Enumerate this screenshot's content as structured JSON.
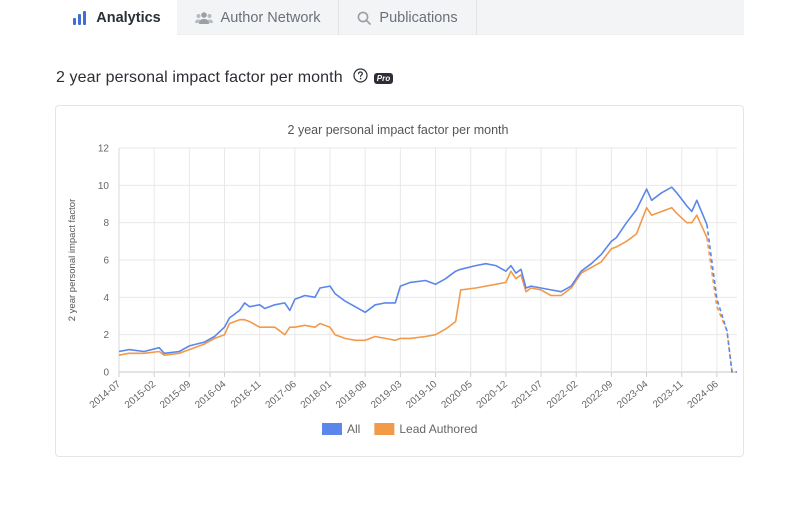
{
  "tabs": [
    {
      "label": "Analytics",
      "icon": "bar-chart-icon",
      "active": true
    },
    {
      "label": "Author Network",
      "icon": "users-icon",
      "active": false
    },
    {
      "label": "Publications",
      "icon": "search-icon",
      "active": false
    }
  ],
  "section": {
    "title": "2 year personal impact factor per month",
    "help_icon": "question-circle-icon",
    "badge": "Pro"
  },
  "chart_data": {
    "type": "line",
    "title": "2 year personal impact factor per month",
    "ylabel": "2 year personal impact factor",
    "xlabel": "",
    "ylim": [
      0,
      12
    ],
    "yticks": [
      0,
      2,
      4,
      6,
      8,
      10,
      12
    ],
    "xticks": [
      "2014-07",
      "2015-02",
      "2015-09",
      "2016-04",
      "2016-11",
      "2017-06",
      "2018-01",
      "2018-08",
      "2019-03",
      "2019-10",
      "2020-05",
      "2020-12",
      "2021-07",
      "2022-02",
      "2022-09",
      "2023-04",
      "2023-11",
      "2024-06"
    ],
    "x_start": "2014-07",
    "x_end": "2024-10",
    "grid": true,
    "legend_position": "bottom",
    "colors": {
      "All": "#5b87ea",
      "Lead Authored": "#f29a4a"
    },
    "series": [
      {
        "name": "All",
        "points": [
          [
            "2014-07",
            1.1
          ],
          [
            "2014-09",
            1.2
          ],
          [
            "2014-12",
            1.1
          ],
          [
            "2015-03",
            1.3
          ],
          [
            "2015-04",
            1.0
          ],
          [
            "2015-07",
            1.1
          ],
          [
            "2015-09",
            1.4
          ],
          [
            "2015-12",
            1.6
          ],
          [
            "2016-02",
            1.9
          ],
          [
            "2016-04",
            2.4
          ],
          [
            "2016-05",
            2.9
          ],
          [
            "2016-07",
            3.3
          ],
          [
            "2016-08",
            3.7
          ],
          [
            "2016-09",
            3.5
          ],
          [
            "2016-11",
            3.6
          ],
          [
            "2016-12",
            3.4
          ],
          [
            "2017-02",
            3.6
          ],
          [
            "2017-04",
            3.7
          ],
          [
            "2017-05",
            3.3
          ],
          [
            "2017-06",
            3.9
          ],
          [
            "2017-08",
            4.1
          ],
          [
            "2017-10",
            4.0
          ],
          [
            "2017-11",
            4.5
          ],
          [
            "2018-01",
            4.6
          ],
          [
            "2018-02",
            4.2
          ],
          [
            "2018-04",
            3.8
          ],
          [
            "2018-06",
            3.5
          ],
          [
            "2018-08",
            3.2
          ],
          [
            "2018-10",
            3.6
          ],
          [
            "2018-12",
            3.7
          ],
          [
            "2019-02",
            3.7
          ],
          [
            "2019-03",
            4.6
          ],
          [
            "2019-05",
            4.8
          ],
          [
            "2019-08",
            4.9
          ],
          [
            "2019-10",
            4.7
          ],
          [
            "2019-12",
            5.0
          ],
          [
            "2020-02",
            5.4
          ],
          [
            "2020-03",
            5.5
          ],
          [
            "2020-06",
            5.7
          ],
          [
            "2020-08",
            5.8
          ],
          [
            "2020-10",
            5.7
          ],
          [
            "2020-12",
            5.4
          ],
          [
            "2021-01",
            5.7
          ],
          [
            "2021-02",
            5.3
          ],
          [
            "2021-03",
            5.5
          ],
          [
            "2021-04",
            4.5
          ],
          [
            "2021-05",
            4.6
          ],
          [
            "2021-07",
            4.5
          ],
          [
            "2021-09",
            4.4
          ],
          [
            "2021-11",
            4.3
          ],
          [
            "2022-01",
            4.6
          ],
          [
            "2022-03",
            5.4
          ],
          [
            "2022-05",
            5.8
          ],
          [
            "2022-07",
            6.3
          ],
          [
            "2022-09",
            7.0
          ],
          [
            "2022-10",
            7.2
          ],
          [
            "2022-12",
            8.0
          ],
          [
            "2023-02",
            8.7
          ],
          [
            "2023-04",
            9.8
          ],
          [
            "2023-05",
            9.2
          ],
          [
            "2023-07",
            9.6
          ],
          [
            "2023-09",
            9.9
          ],
          [
            "2023-10",
            9.6
          ],
          [
            "2023-12",
            8.9
          ],
          [
            "2024-01",
            8.6
          ],
          [
            "2024-02",
            9.2
          ],
          [
            "2024-04",
            7.9
          ],
          [
            "2024-06",
            3.9
          ],
          [
            "2024-08",
            2.2
          ],
          [
            "2024-09",
            0.0
          ],
          [
            "2024-10",
            0.0
          ]
        ]
      },
      {
        "name": "Lead Authored",
        "points": [
          [
            "2014-07",
            0.9
          ],
          [
            "2014-09",
            1.0
          ],
          [
            "2014-12",
            1.0
          ],
          [
            "2015-03",
            1.1
          ],
          [
            "2015-04",
            0.9
          ],
          [
            "2015-07",
            1.0
          ],
          [
            "2015-09",
            1.2
          ],
          [
            "2015-12",
            1.5
          ],
          [
            "2016-02",
            1.8
          ],
          [
            "2016-04",
            2.0
          ],
          [
            "2016-05",
            2.6
          ],
          [
            "2016-07",
            2.8
          ],
          [
            "2016-08",
            2.8
          ],
          [
            "2016-09",
            2.7
          ],
          [
            "2016-11",
            2.4
          ],
          [
            "2016-12",
            2.4
          ],
          [
            "2017-02",
            2.4
          ],
          [
            "2017-04",
            2.0
          ],
          [
            "2017-05",
            2.4
          ],
          [
            "2017-06",
            2.4
          ],
          [
            "2017-08",
            2.5
          ],
          [
            "2017-10",
            2.4
          ],
          [
            "2017-11",
            2.6
          ],
          [
            "2018-01",
            2.4
          ],
          [
            "2018-02",
            2.0
          ],
          [
            "2018-04",
            1.8
          ],
          [
            "2018-06",
            1.7
          ],
          [
            "2018-08",
            1.7
          ],
          [
            "2018-10",
            1.9
          ],
          [
            "2018-12",
            1.8
          ],
          [
            "2019-02",
            1.7
          ],
          [
            "2019-03",
            1.8
          ],
          [
            "2019-05",
            1.8
          ],
          [
            "2019-08",
            1.9
          ],
          [
            "2019-10",
            2.0
          ],
          [
            "2019-12",
            2.3
          ],
          [
            "2020-02",
            2.7
          ],
          [
            "2020-03",
            4.4
          ],
          [
            "2020-06",
            4.5
          ],
          [
            "2020-08",
            4.6
          ],
          [
            "2020-10",
            4.7
          ],
          [
            "2020-12",
            4.8
          ],
          [
            "2021-01",
            5.4
          ],
          [
            "2021-02",
            5.0
          ],
          [
            "2021-03",
            5.2
          ],
          [
            "2021-04",
            4.3
          ],
          [
            "2021-05",
            4.5
          ],
          [
            "2021-07",
            4.4
          ],
          [
            "2021-09",
            4.1
          ],
          [
            "2021-11",
            4.1
          ],
          [
            "2022-01",
            4.5
          ],
          [
            "2022-03",
            5.3
          ],
          [
            "2022-05",
            5.6
          ],
          [
            "2022-07",
            5.9
          ],
          [
            "2022-09",
            6.6
          ],
          [
            "2022-10",
            6.7
          ],
          [
            "2022-12",
            7.0
          ],
          [
            "2023-02",
            7.4
          ],
          [
            "2023-04",
            8.8
          ],
          [
            "2023-05",
            8.4
          ],
          [
            "2023-07",
            8.6
          ],
          [
            "2023-09",
            8.8
          ],
          [
            "2023-10",
            8.5
          ],
          [
            "2023-12",
            8.0
          ],
          [
            "2024-01",
            8.0
          ],
          [
            "2024-02",
            8.4
          ],
          [
            "2024-04",
            7.2
          ],
          [
            "2024-06",
            3.5
          ],
          [
            "2024-08",
            2.2
          ],
          [
            "2024-09",
            0.0
          ],
          [
            "2024-10",
            0.0
          ]
        ]
      }
    ]
  }
}
